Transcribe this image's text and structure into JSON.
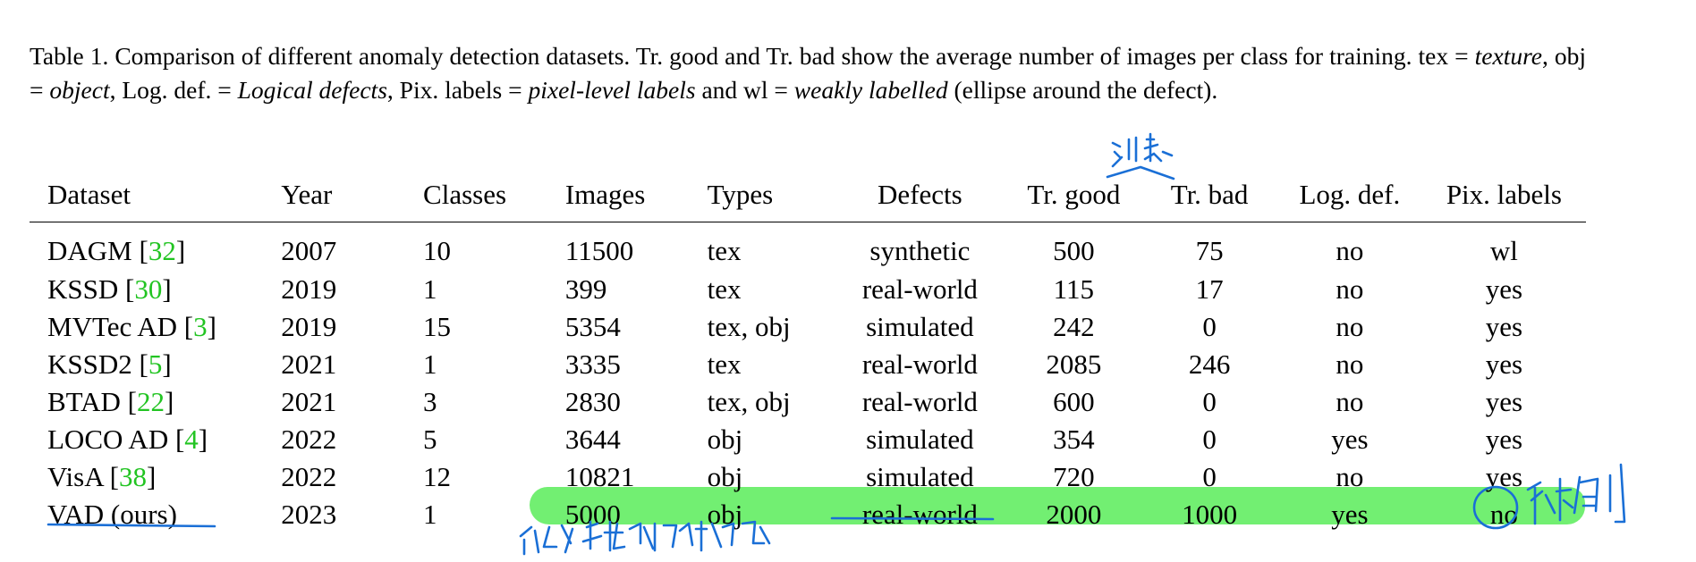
{
  "caption": {
    "lead": "Table 1. Comparison of different anomaly detection datasets. Tr. good and Tr. bad show the average number of images per class for training. tex = ",
    "texture": "texture",
    "s1": ", obj = ",
    "object": "object",
    "s2": ", Log. def. = ",
    "logical": "Logical defects",
    "s3": ", Pix. labels = ",
    "pixel": "pixel-level labels",
    "s4": " and wl = ",
    "weak": "weakly labelled",
    "tail": " (ellipse around the defect)."
  },
  "table": {
    "headers": [
      "Dataset",
      "Year",
      "Classes",
      "Images",
      "Types",
      "Defects",
      "Tr. good",
      "Tr. bad",
      "Log. def.",
      "Pix. labels"
    ],
    "rows": [
      {
        "name": "DAGM [",
        "ref": "32",
        "close": "]",
        "year": "2007",
        "classes": "10",
        "images": "11500",
        "types": "tex",
        "defects": "synthetic",
        "good": "500",
        "bad": "75",
        "log": "no",
        "pix": "wl"
      },
      {
        "name": "KSSD [",
        "ref": "30",
        "close": "]",
        "year": "2019",
        "classes": "1",
        "images": "399",
        "types": "tex",
        "defects": "real-world",
        "good": "115",
        "bad": "17",
        "log": "no",
        "pix": "yes"
      },
      {
        "name": "MVTec AD [",
        "ref": "3",
        "close": "]",
        "year": "2019",
        "classes": "15",
        "images": "5354",
        "types": "tex, obj",
        "defects": "simulated",
        "good": "242",
        "bad": "0",
        "log": "no",
        "pix": "yes"
      },
      {
        "name": "KSSD2 [",
        "ref": "5",
        "close": "]",
        "year": "2021",
        "classes": "1",
        "images": "3335",
        "types": "tex",
        "defects": "real-world",
        "good": "2085",
        "bad": "246",
        "log": "no",
        "pix": "yes"
      },
      {
        "name": "BTAD [",
        "ref": "22",
        "close": "]",
        "year": "2021",
        "classes": "3",
        "images": "2830",
        "types": "tex, obj",
        "defects": "real-world",
        "good": "600",
        "bad": "0",
        "log": "no",
        "pix": "yes"
      },
      {
        "name": "LOCO AD [",
        "ref": "4",
        "close": "]",
        "year": "2022",
        "classes": "5",
        "images": "3644",
        "types": "obj",
        "defects": "simulated",
        "good": "354",
        "bad": "0",
        "log": "yes",
        "pix": "yes"
      },
      {
        "name": "VisA [",
        "ref": "38",
        "close": "]",
        "year": "2022",
        "classes": "12",
        "images": "10821",
        "types": "obj",
        "defects": "simulated",
        "good": "720",
        "bad": "0",
        "log": "no",
        "pix": "yes"
      },
      {
        "name": "VAD (ours)",
        "ref": "",
        "close": "",
        "year": "2023",
        "classes": "1",
        "images": "5000",
        "types": "obj",
        "defects": "real-world",
        "good": "2000",
        "bad": "1000",
        "log": "yes",
        "pix": "no"
      }
    ]
  },
  "annotations": {
    "ink_color": "#1a6fd6",
    "highlight_color": "#66ee66",
    "ref_color": "#22c422"
  }
}
